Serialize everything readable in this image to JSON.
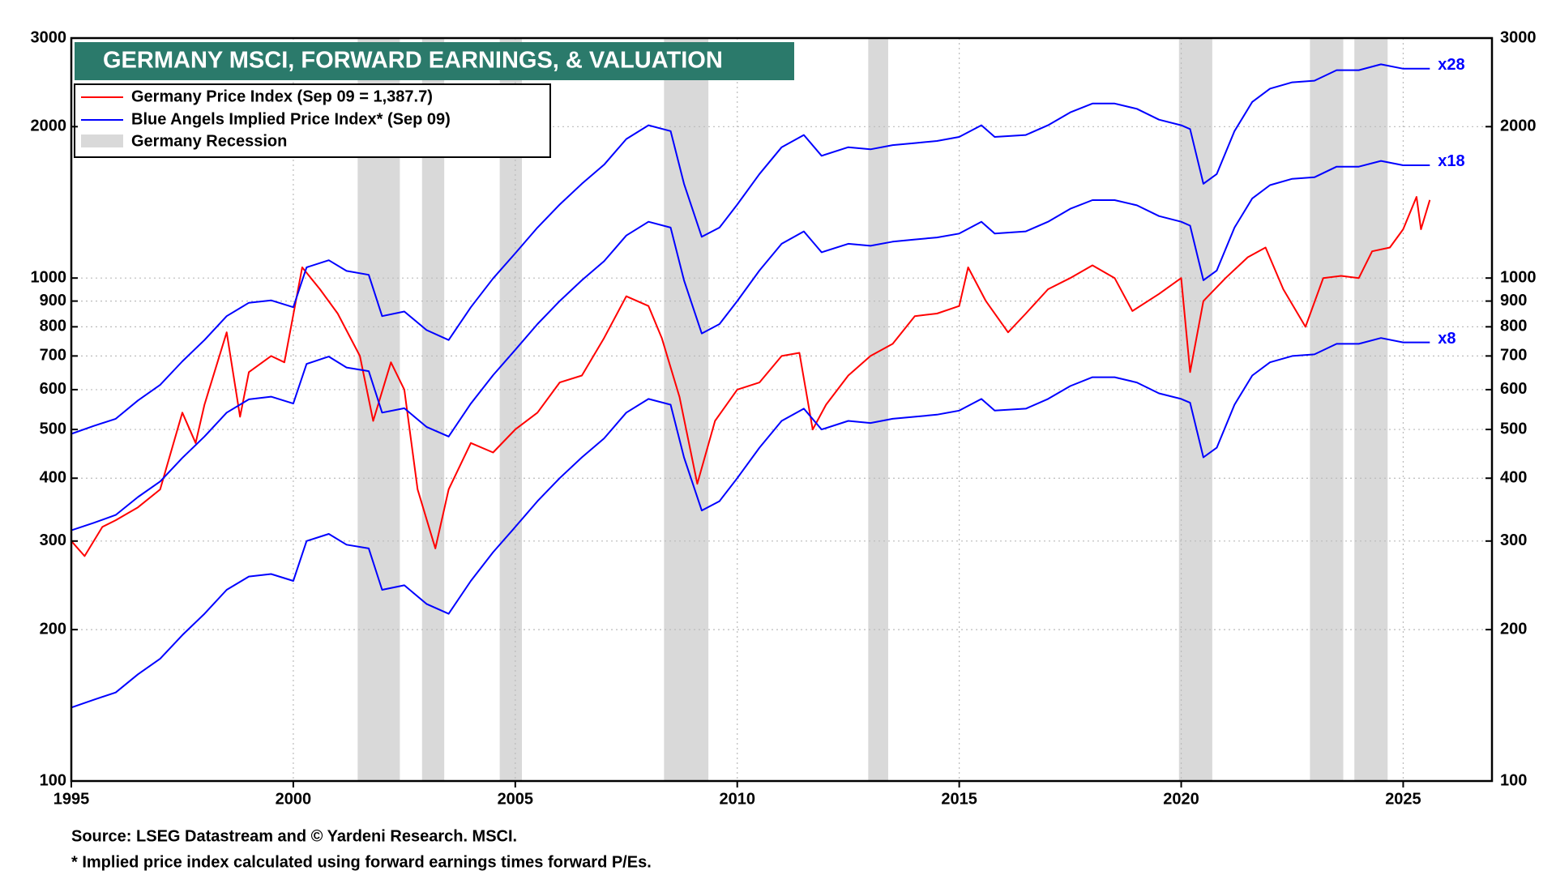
{
  "chart_data": {
    "type": "line",
    "title": "GERMANY MSCI, FORWARD EARNINGS, & VALUATION",
    "legend": [
      "Germany Price Index (Sep 09 = 1,387.7)",
      "Blue Angels Implied Price Index* (Sep 09)",
      "Germany Recession"
    ],
    "footnotes": [
      "Source: LSEG Datastream and © Yardeni Research. MSCI.",
      "* Implied price index calculated using forward earnings times forward P/Es."
    ],
    "log_scale": true,
    "grid": true,
    "xlim": [
      1995,
      2027
    ],
    "xticks": [
      1995,
      2000,
      2005,
      2010,
      2015,
      2020,
      2025
    ],
    "ylim": [
      100,
      3000
    ],
    "yticks": [
      100,
      200,
      300,
      400,
      500,
      600,
      700,
      800,
      900,
      1000,
      2000,
      3000
    ],
    "recession_color": "#d9d9d9",
    "recessions": [
      [
        2001.45,
        2002.4
      ],
      [
        2002.9,
        2003.4
      ],
      [
        2004.65,
        2005.15
      ],
      [
        2008.35,
        2009.35
      ],
      [
        2012.95,
        2013.4
      ],
      [
        2019.95,
        2020.7
      ],
      [
        2022.9,
        2023.65
      ],
      [
        2023.9,
        2024.65
      ]
    ],
    "x": [
      1995.0,
      1995.5,
      1996.0,
      1996.5,
      1997.0,
      1997.5,
      1998.0,
      1998.5,
      1999.0,
      1999.5,
      2000.0,
      2000.3,
      2000.8,
      2001.2,
      2001.7,
      2002.0,
      2002.5,
      2003.0,
      2003.5,
      2004.0,
      2004.5,
      2005.0,
      2005.5,
      2006.0,
      2006.5,
      2007.0,
      2007.5,
      2008.0,
      2008.5,
      2008.8,
      2009.2,
      2009.6,
      2010.0,
      2010.5,
      2011.0,
      2011.5,
      2011.9,
      2012.5,
      2013.0,
      2013.5,
      2014.0,
      2014.5,
      2015.0,
      2015.5,
      2015.8,
      2016.5,
      2017.0,
      2017.5,
      2018.0,
      2018.5,
      2019.0,
      2019.5,
      2020.0,
      2020.2,
      2020.5,
      2020.8,
      2021.2,
      2021.6,
      2022.0,
      2022.5,
      2023.0,
      2023.5,
      2024.0,
      2024.5,
      2025.0,
      2025.6
    ],
    "series": [
      {
        "name": "Germany Price Index",
        "color": "#ff0000",
        "x": [
          1995.0,
          1995.3,
          1995.7,
          1996.0,
          1996.5,
          1997.0,
          1997.5,
          1997.8,
          1998.0,
          1998.5,
          1998.8,
          1999.0,
          1999.5,
          1999.8,
          2000.2,
          2000.6,
          2001.0,
          2001.5,
          2001.8,
          2002.2,
          2002.5,
          2002.8,
          2003.2,
          2003.5,
          2004.0,
          2004.5,
          2005.0,
          2005.5,
          2006.0,
          2006.5,
          2007.0,
          2007.5,
          2008.0,
          2008.3,
          2008.7,
          2009.1,
          2009.5,
          2010.0,
          2010.5,
          2011.0,
          2011.4,
          2011.7,
          2012.0,
          2012.5,
          2013.0,
          2013.5,
          2014.0,
          2014.5,
          2015.0,
          2015.2,
          2015.6,
          2016.1,
          2016.5,
          2017.0,
          2017.5,
          2018.0,
          2018.5,
          2018.9,
          2019.5,
          2020.0,
          2020.2,
          2020.5,
          2021.0,
          2021.5,
          2021.9,
          2022.3,
          2022.8,
          2023.2,
          2023.6,
          2024.0,
          2024.3,
          2024.7,
          2025.0,
          2025.3,
          2025.4,
          2025.6
        ],
        "values": [
          300,
          280,
          320,
          330,
          350,
          380,
          540,
          470,
          560,
          780,
          530,
          650,
          700,
          680,
          1050,
          950,
          850,
          700,
          520,
          680,
          600,
          380,
          290,
          380,
          470,
          450,
          500,
          540,
          620,
          640,
          760,
          920,
          880,
          760,
          580,
          390,
          520,
          600,
          620,
          700,
          710,
          500,
          560,
          640,
          700,
          740,
          840,
          850,
          880,
          1050,
          900,
          780,
          850,
          950,
          1000,
          1060,
          1000,
          860,
          930,
          1000,
          650,
          900,
          1000,
          1100,
          1150,
          950,
          800,
          1000,
          1010,
          1000,
          1130,
          1150,
          1250,
          1450,
          1250,
          1430
        ]
      },
      {
        "name": "x28",
        "color": "#0000ff",
        "values": [
          490,
          508,
          525,
          571,
          613,
          683,
          753,
          840,
          893,
          903,
          875,
          1050,
          1085,
          1033,
          1015,
          840,
          858,
          788,
          753,
          875,
          998,
          1120,
          1260,
          1400,
          1540,
          1680,
          1890,
          2013,
          1960,
          1540,
          1208,
          1260,
          1400,
          1610,
          1820,
          1925,
          1750,
          1820,
          1803,
          1838,
          1855,
          1873,
          1908,
          2013,
          1908,
          1925,
          2013,
          2135,
          2223,
          2223,
          2170,
          2065,
          2013,
          1978,
          1540,
          1610,
          1960,
          2240,
          2380,
          2450,
          2468,
          2590,
          2590,
          2660,
          2608,
          2608
        ]
      },
      {
        "name": "x18",
        "color": "#0000ff",
        "values": [
          315,
          326,
          338,
          367,
          394,
          439,
          484,
          540,
          574,
          581,
          563,
          675,
          698,
          664,
          653,
          540,
          551,
          506,
          484,
          563,
          641,
          720,
          810,
          900,
          990,
          1080,
          1215,
          1294,
          1260,
          990,
          776,
          810,
          900,
          1035,
          1170,
          1238,
          1125,
          1170,
          1159,
          1181,
          1193,
          1204,
          1226,
          1294,
          1226,
          1238,
          1294,
          1373,
          1429,
          1429,
          1395,
          1328,
          1294,
          1271,
          990,
          1035,
          1260,
          1440,
          1530,
          1575,
          1586,
          1665,
          1665,
          1710,
          1676,
          1676
        ]
      },
      {
        "name": "x8",
        "color": "#0000ff",
        "values": [
          140,
          145,
          150,
          163,
          175,
          195,
          215,
          240,
          255,
          258,
          250,
          300,
          310,
          295,
          290,
          240,
          245,
          225,
          215,
          250,
          285,
          320,
          360,
          400,
          440,
          480,
          540,
          575,
          560,
          440,
          345,
          360,
          400,
          460,
          520,
          550,
          500,
          520,
          515,
          525,
          530,
          535,
          545,
          575,
          545,
          550,
          575,
          610,
          635,
          635,
          620,
          590,
          575,
          565,
          440,
          460,
          560,
          640,
          680,
          700,
          705,
          740,
          740,
          760,
          745,
          745
        ]
      }
    ]
  }
}
